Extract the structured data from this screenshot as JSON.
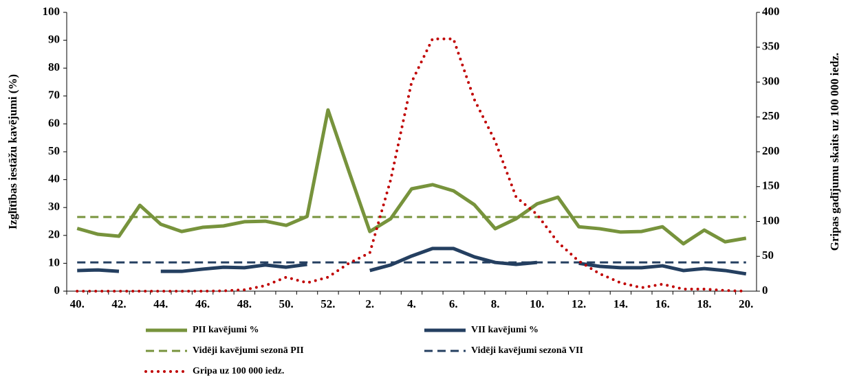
{
  "chart_data": {
    "type": "line",
    "categories": [
      "40.",
      null,
      "42.",
      null,
      "44.",
      null,
      "46.",
      null,
      "48.",
      null,
      "50.",
      null,
      "52.",
      null,
      "2.",
      null,
      "4.",
      null,
      "6.",
      null,
      "8.",
      null,
      "10.",
      null,
      "12.",
      null,
      "14.",
      null,
      "16.",
      null,
      "18.",
      null,
      "20."
    ],
    "y_label": "Izglītības iestāžu kavējumi (%)",
    "y2_label": "Gripas gadījumu skaits uz 100 000 iedz.",
    "ylim": [
      0,
      100
    ],
    "yticks": [
      0,
      10,
      20,
      30,
      40,
      50,
      60,
      70,
      80,
      90,
      100
    ],
    "y2lim": [
      0,
      400
    ],
    "y2ticks": [
      0,
      50,
      100,
      150,
      200,
      250,
      300,
      350,
      400
    ],
    "series": [
      {
        "name": "PII kavējumi %",
        "color": "#77933c",
        "style": "solid",
        "values": [
          22.5,
          20.4,
          19.7,
          30.8,
          24,
          21.4,
          22.9,
          23.4,
          24.9,
          25.1,
          23.6,
          26.8,
          65,
          43,
          21.4,
          26,
          36.7,
          38.2,
          36,
          31,
          22.4,
          26,
          31.3,
          33.7,
          23.1,
          22.4,
          21.2,
          21.4,
          23.1,
          17,
          21.9,
          17.7,
          19
        ]
      },
      {
        "name": "VII kavējumi %",
        "color": "#243f60",
        "style": "solid",
        "values": [
          7.4,
          7.6,
          7.1,
          null,
          7.1,
          7.1,
          7.9,
          8.6,
          8.4,
          9.4,
          8.6,
          9.6,
          null,
          null,
          7.4,
          9.4,
          12.6,
          15.3,
          15.3,
          12.3,
          10.3,
          9.6,
          10.3,
          null,
          10,
          8.9,
          8.4,
          8.4,
          9.1,
          7.4,
          8.1,
          7.4,
          6.2
        ]
      },
      {
        "name": "Vidēji kavējumi sezonā PII",
        "color": "#77933c",
        "style": "dashed",
        "values": [
          26.6,
          26.6,
          26.6,
          26.6,
          26.6,
          26.6,
          26.6,
          26.6,
          26.6,
          26.6,
          26.6,
          26.6,
          26.6,
          26.6,
          26.6,
          26.6,
          26.6,
          26.6,
          26.6,
          26.6,
          26.6,
          26.6,
          26.6,
          26.6,
          26.6,
          26.6,
          26.6,
          26.6,
          26.6,
          26.6,
          26.6,
          26.6,
          26.6
        ]
      },
      {
        "name": "Vidēji kavējumi sezonā VII",
        "color": "#243f60",
        "style": "dashed",
        "values": [
          10.3,
          10.3,
          10.3,
          10.3,
          10.3,
          10.3,
          10.3,
          10.3,
          10.3,
          10.3,
          10.3,
          10.3,
          10.3,
          10.3,
          10.3,
          10.3,
          10.3,
          10.3,
          10.3,
          10.3,
          10.3,
          10.3,
          10.3,
          10.3,
          10.3,
          10.3,
          10.3,
          10.3,
          10.3,
          10.3,
          10.3,
          10.3,
          10.3
        ]
      },
      {
        "name": "Gripa uz 100 000 iedz.",
        "color": "#c00000",
        "style": "dotted",
        "axis": "y2",
        "values": [
          0,
          0,
          0,
          0,
          0,
          0,
          0,
          0.5,
          2,
          8,
          20,
          12,
          20,
          40,
          55,
          160,
          300,
          362,
          362,
          275,
          215,
          135,
          110,
          70,
          43,
          25,
          12,
          5,
          10,
          3,
          3,
          1,
          0
        ]
      }
    ]
  }
}
